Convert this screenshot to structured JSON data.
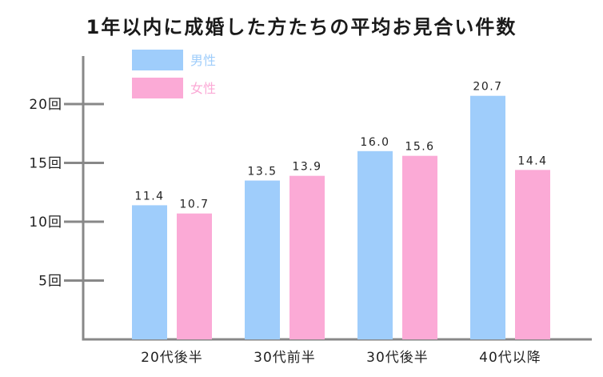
{
  "chart_data": {
    "type": "bar",
    "title": "1年以内に成婚した方たちの平均お見合い件数",
    "categories": [
      "20代後半",
      "30代前半",
      "30代後半",
      "40代以降"
    ],
    "series": [
      {
        "name": "男性",
        "values": [
          11.4,
          13.5,
          16.0,
          20.7
        ],
        "color": "#9fcdfb"
      },
      {
        "name": "女性",
        "values": [
          10.7,
          13.9,
          15.6,
          14.4
        ],
        "color": "#fbaad6"
      }
    ],
    "data_labels": [
      [
        "11.4",
        "13.5",
        "16.0",
        "20.7"
      ],
      [
        "10.7",
        "13.9",
        "15.6",
        "14.4"
      ]
    ],
    "y_ticks": [
      {
        "value": 5,
        "label": "5回"
      },
      {
        "value": 10,
        "label": "10回"
      },
      {
        "value": 15,
        "label": "15回"
      },
      {
        "value": 20,
        "label": "20回"
      }
    ],
    "ylim": [
      0,
      24
    ],
    "xlabel": "",
    "ylabel": "",
    "grid": false,
    "legend_position": "top-left",
    "axis_color": "#888888"
  }
}
